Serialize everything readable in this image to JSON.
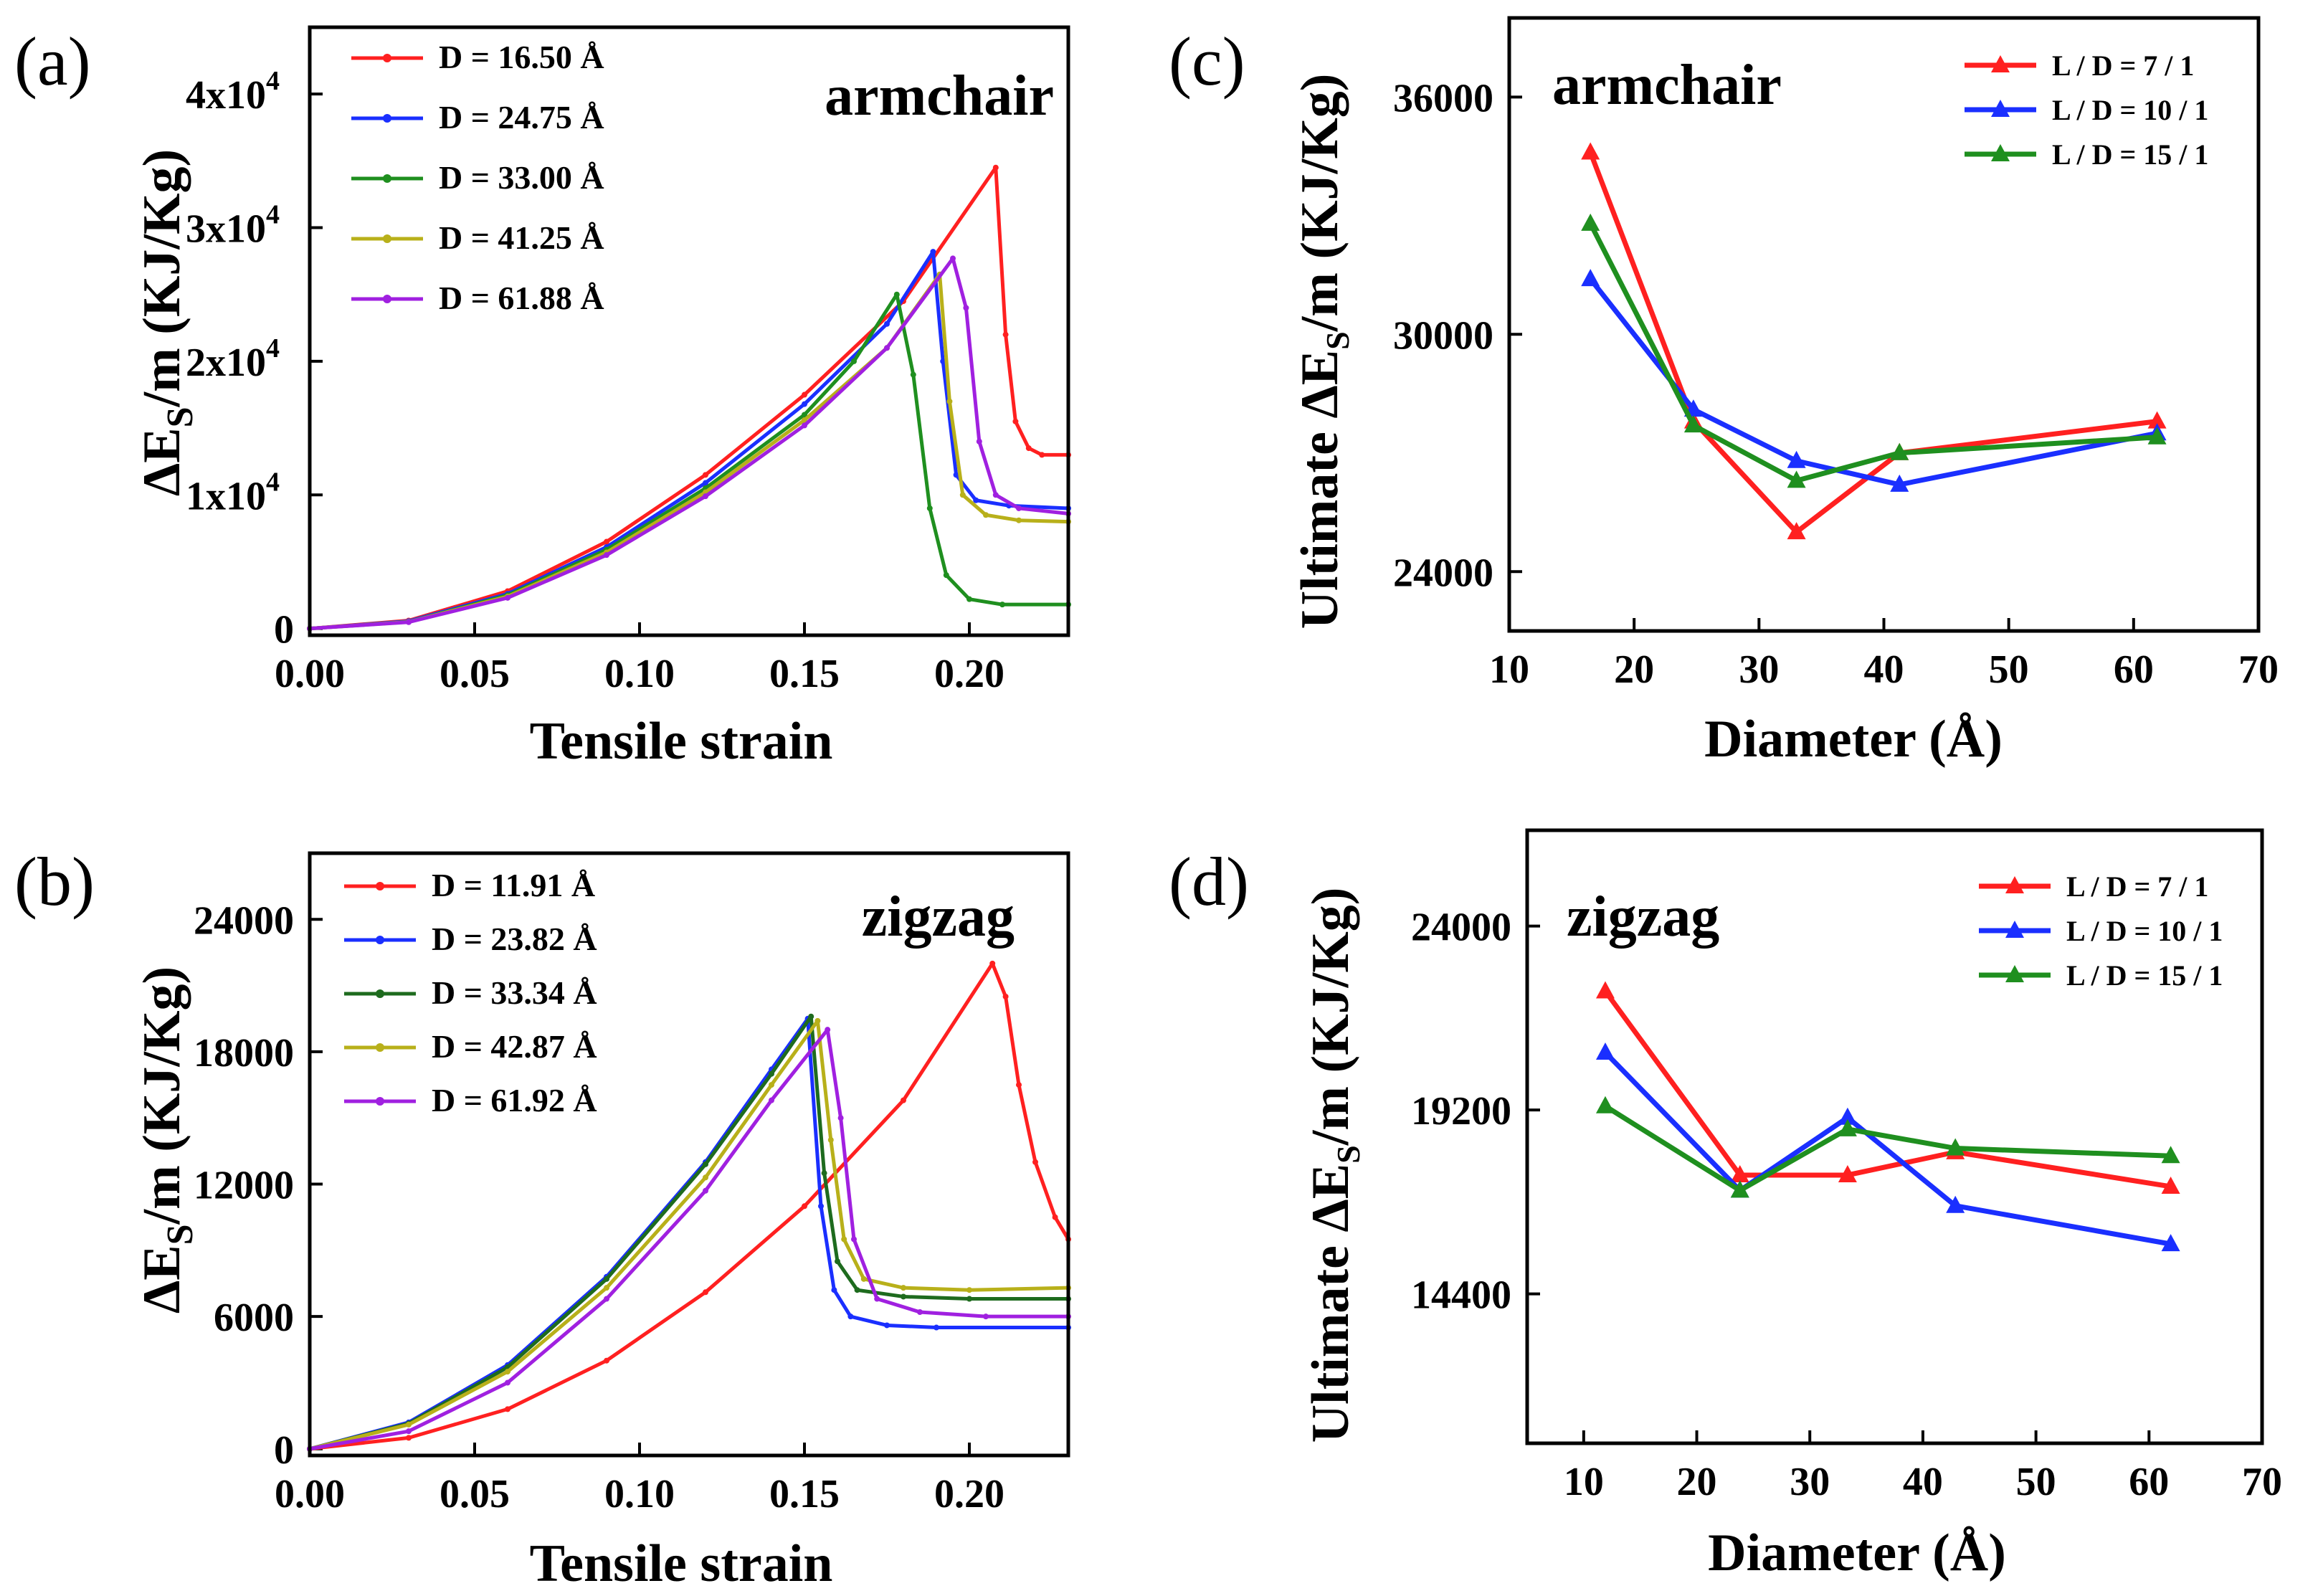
{
  "colors": {
    "red": "#ff2020",
    "blue": "#1a2fff",
    "green": "#1f8f1f",
    "olive": "#b8b01a",
    "purple": "#a020e0",
    "dgreen": "#1e6b1e"
  },
  "chart_data": [
    {
      "panel": "(a)",
      "type": "line",
      "annotation": "armchair",
      "xlabel": "Tensile strain",
      "ylabel": "ΔES/m (KJ/Kg)",
      "xlim": [
        0,
        0.23
      ],
      "ylim": [
        -500,
        45000
      ],
      "xticks": [
        "0.00",
        "0.05",
        "0.10",
        "0.15",
        "0.20"
      ],
      "xtick_values": [
        0,
        0.05,
        0.1,
        0.15,
        0.2
      ],
      "ytick_values": [
        0,
        10000,
        20000,
        30000,
        40000
      ],
      "ytick_base": [
        "0",
        "1x10",
        "2x10",
        "3x10",
        "4x10"
      ],
      "ytick_exp": [
        "",
        "4",
        "4",
        "4",
        "4"
      ],
      "legend_position": "top-left",
      "series": [
        {
          "name": "D = 16.50 Å",
          "color": "red",
          "x": [
            0,
            0.03,
            0.06,
            0.09,
            0.12,
            0.15,
            0.18,
            0.208,
            0.211,
            0.214,
            0.218,
            0.222,
            0.23
          ],
          "y": [
            0,
            600,
            2800,
            6500,
            11500,
            17500,
            24500,
            34500,
            22000,
            15500,
            13500,
            13000,
            13000
          ]
        },
        {
          "name": "D = 24.75 Å",
          "color": "blue",
          "x": [
            0,
            0.03,
            0.06,
            0.09,
            0.12,
            0.15,
            0.175,
            0.189,
            0.192,
            0.196,
            0.202,
            0.212,
            0.23
          ],
          "y": [
            0,
            550,
            2600,
            6100,
            10900,
            16800,
            22800,
            28200,
            20000,
            11500,
            9600,
            9200,
            9000
          ]
        },
        {
          "name": "D = 33.00 Å",
          "color": "green",
          "x": [
            0,
            0.03,
            0.06,
            0.09,
            0.12,
            0.15,
            0.165,
            0.178,
            0.183,
            0.188,
            0.193,
            0.2,
            0.21,
            0.23
          ],
          "y": [
            0,
            500,
            2500,
            5900,
            10500,
            16000,
            20000,
            25000,
            19000,
            9000,
            4000,
            2200,
            1800,
            1800
          ]
        },
        {
          "name": "D = 41.25 Å",
          "color": "olive",
          "x": [
            0,
            0.03,
            0.06,
            0.09,
            0.12,
            0.15,
            0.175,
            0.191,
            0.194,
            0.198,
            0.205,
            0.215,
            0.23
          ],
          "y": [
            0,
            500,
            2400,
            5700,
            10200,
            15600,
            21000,
            26500,
            17000,
            10000,
            8500,
            8100,
            8000
          ]
        },
        {
          "name": "D = 61.88 Å",
          "color": "purple",
          "x": [
            0,
            0.03,
            0.06,
            0.09,
            0.12,
            0.15,
            0.175,
            0.195,
            0.199,
            0.203,
            0.208,
            0.215,
            0.23
          ],
          "y": [
            0,
            480,
            2300,
            5500,
            9900,
            15200,
            21000,
            27700,
            24000,
            14000,
            10000,
            9000,
            8600
          ]
        }
      ]
    },
    {
      "panel": "(b)",
      "type": "line",
      "annotation": "zigzag",
      "xlabel": "Tensile strain",
      "ylabel": "ΔES/m (KJ/Kg)",
      "xlim": [
        0,
        0.23
      ],
      "ylim": [
        -300,
        27000
      ],
      "xticks": [
        "0.00",
        "0.05",
        "0.10",
        "0.15",
        "0.20"
      ],
      "xtick_values": [
        0,
        0.05,
        0.1,
        0.15,
        0.2
      ],
      "ytick_values": [
        0,
        6000,
        12000,
        18000,
        24000
      ],
      "yticks": [
        "0",
        "6000",
        "12000",
        "18000",
        "24000"
      ],
      "legend_position": "top-left",
      "series": [
        {
          "name": "D = 11.91 Å",
          "color": "red",
          "x": [
            0,
            0.03,
            0.06,
            0.09,
            0.12,
            0.15,
            0.18,
            0.207,
            0.211,
            0.215,
            0.22,
            0.226,
            0.23
          ],
          "y": [
            0,
            500,
            1800,
            4000,
            7100,
            11000,
            15800,
            22000,
            20500,
            16500,
            13000,
            10500,
            9500
          ]
        },
        {
          "name": "D = 23.82 Å",
          "color": "blue",
          "x": [
            0,
            0.03,
            0.06,
            0.09,
            0.12,
            0.14,
            0.151,
            0.155,
            0.159,
            0.164,
            0.175,
            0.19,
            0.23
          ],
          "y": [
            0,
            1200,
            3800,
            7800,
            13000,
            17200,
            19500,
            11000,
            7200,
            6000,
            5600,
            5500,
            5500
          ]
        },
        {
          "name": "D = 33.34 Å",
          "color": "dgreen",
          "x": [
            0,
            0.03,
            0.06,
            0.09,
            0.12,
            0.14,
            0.152,
            0.156,
            0.16,
            0.166,
            0.18,
            0.2,
            0.23
          ],
          "y": [
            0,
            1150,
            3700,
            7700,
            12900,
            17000,
            19600,
            12500,
            8500,
            7200,
            6900,
            6800,
            6800
          ]
        },
        {
          "name": "D = 42.87 Å",
          "color": "olive",
          "x": [
            0,
            0.03,
            0.06,
            0.09,
            0.12,
            0.14,
            0.154,
            0.158,
            0.162,
            0.168,
            0.18,
            0.2,
            0.23
          ],
          "y": [
            0,
            1100,
            3500,
            7300,
            12300,
            16500,
            19400,
            14000,
            9500,
            7700,
            7300,
            7200,
            7300
          ]
        },
        {
          "name": "D = 61.92 Å",
          "color": "purple",
          "x": [
            0,
            0.03,
            0.06,
            0.09,
            0.12,
            0.14,
            0.157,
            0.161,
            0.165,
            0.172,
            0.185,
            0.205,
            0.23
          ],
          "y": [
            0,
            800,
            3000,
            6800,
            11700,
            15800,
            19000,
            15000,
            9500,
            6800,
            6200,
            6000,
            6000
          ]
        }
      ]
    },
    {
      "panel": "(c)",
      "type": "line",
      "annotation": "armchair",
      "xlabel": "Diameter (Å)",
      "ylabel": "Ultimate ΔES/m (KJ/Kg)",
      "xlim": [
        10,
        70
      ],
      "ylim": [
        22500,
        38000
      ],
      "xticks": [
        "10",
        "20",
        "30",
        "40",
        "50",
        "60",
        "70"
      ],
      "xtick_values": [
        10,
        20,
        30,
        40,
        50,
        60,
        70
      ],
      "ytick_values": [
        24000,
        30000,
        36000
      ],
      "yticks": [
        "24000",
        "30000",
        "36000"
      ],
      "legend_position": "top-right",
      "series": [
        {
          "name": "L / D = 7 / 1",
          "color": "red",
          "x": [
            16.5,
            24.75,
            33.0,
            41.25,
            61.88
          ],
          "y": [
            34600,
            27800,
            25000,
            27000,
            27800
          ]
        },
        {
          "name": "L / D = 10 / 1",
          "color": "blue",
          "x": [
            16.5,
            24.75,
            33.0,
            41.25,
            61.88
          ],
          "y": [
            31400,
            28100,
            26800,
            26200,
            27500
          ]
        },
        {
          "name": "L / D = 15 / 1",
          "color": "green",
          "x": [
            16.5,
            24.75,
            33.0,
            41.25,
            61.88
          ],
          "y": [
            32800,
            27700,
            26300,
            27000,
            27400
          ]
        }
      ]
    },
    {
      "panel": "(d)",
      "type": "line",
      "annotation": "zigzag",
      "xlabel": "Diameter (Å)",
      "ylabel": "Ultimate ΔES/m (KJ/Kg)",
      "xlim": [
        5,
        70
      ],
      "ylim": [
        10500,
        26500
      ],
      "xticks": [
        "10",
        "20",
        "30",
        "40",
        "50",
        "60",
        "70"
      ],
      "xtick_values": [
        10,
        20,
        30,
        40,
        50,
        60,
        70
      ],
      "ytick_values": [
        14400,
        19200,
        24000
      ],
      "yticks": [
        "14400",
        "19200",
        "24000"
      ],
      "legend_position": "top-right",
      "series": [
        {
          "name": "L / D = 7 / 1",
          "color": "red",
          "x": [
            11.91,
            23.82,
            33.34,
            42.87,
            61.92
          ],
          "y": [
            22300,
            17500,
            17500,
            18100,
            17200
          ]
        },
        {
          "name": "L / D = 10 / 1",
          "color": "blue",
          "x": [
            11.91,
            23.82,
            33.34,
            42.87,
            61.92
          ],
          "y": [
            20700,
            17100,
            19000,
            16700,
            15700
          ]
        },
        {
          "name": "L / D = 15 / 1",
          "color": "green",
          "x": [
            11.91,
            23.82,
            33.34,
            42.87,
            61.92
          ],
          "y": [
            19300,
            17100,
            18700,
            18200,
            18000
          ]
        }
      ]
    }
  ]
}
